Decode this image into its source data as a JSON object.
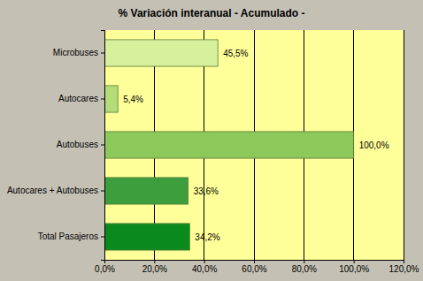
{
  "chart_data": {
    "type": "bar",
    "orientation": "horizontal",
    "title": "% Variación interanual - Acumulado -",
    "categories": [
      "Microbuses",
      "Autocares",
      "Autobuses",
      "Autocares + Autobuses",
      "Total Pasajeros"
    ],
    "values": [
      45.5,
      5.4,
      100.0,
      33.6,
      34.2
    ],
    "value_labels": [
      "45,5%",
      "5,4%",
      "100,0%",
      "33,6%",
      "34,2%"
    ],
    "colors": [
      "#d6f09c",
      "#b4dc78",
      "#8cc85a",
      "#3c9e3c",
      "#0a8a1c"
    ],
    "xlim": [
      0,
      120
    ],
    "xticks": [
      {
        "value": 0,
        "label": "0,0%"
      },
      {
        "value": 20,
        "label": "20,0%"
      },
      {
        "value": 40,
        "label": "40,0%"
      },
      {
        "value": 60,
        "label": "60,0%"
      },
      {
        "value": 80,
        "label": "80,0%"
      },
      {
        "value": 100,
        "label": "100,0%"
      },
      {
        "value": 120,
        "label": "120,0%"
      }
    ],
    "grid": true,
    "data_labels": true
  }
}
